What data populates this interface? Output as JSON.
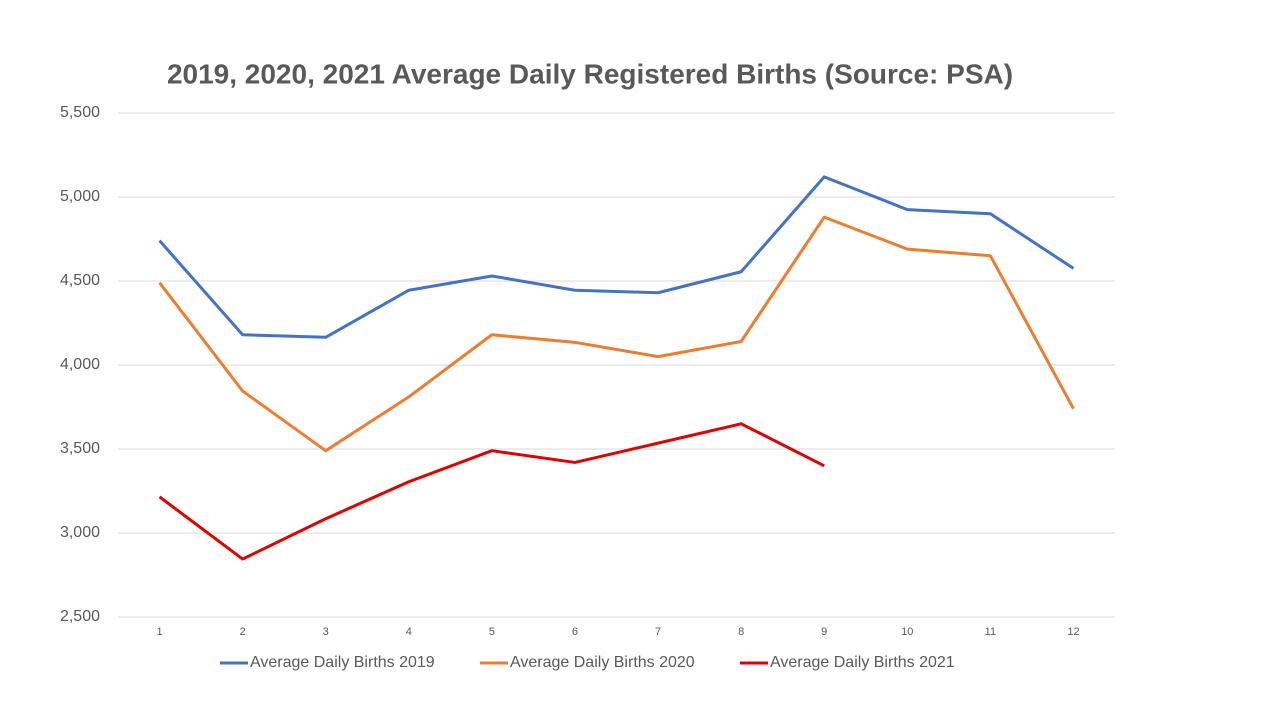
{
  "chart_data": {
    "type": "line",
    "title": "2019, 2020, 2021 Average Daily Registered Births (Source: PSA)",
    "categories": [
      "1",
      "2",
      "3",
      "4",
      "5",
      "6",
      "7",
      "8",
      "9",
      "10",
      "11",
      "12"
    ],
    "series": [
      {
        "name": "Average Daily Births 2019",
        "color": "#4472c4",
        "values": [
          4740,
          4180,
          4165,
          4445,
          4530,
          4445,
          4430,
          4555,
          5120,
          4925,
          4900,
          4575
        ]
      },
      {
        "name": "Average Daily Births 2020",
        "color": "#ed7d31",
        "values": [
          4490,
          3845,
          3490,
          3810,
          4180,
          4135,
          4050,
          4140,
          4880,
          4690,
          4650,
          3740
        ]
      },
      {
        "name": "Average Daily Births 2021",
        "color": "#e00000",
        "values": [
          3215,
          2845,
          3085,
          3305,
          3490,
          3420,
          3535,
          3650,
          3400,
          null,
          null,
          null
        ]
      }
    ],
    "ylim": [
      2500,
      5500
    ],
    "yticks": [
      {
        "value": 2500,
        "label": "2,500"
      },
      {
        "value": 3000,
        "label": "3,000"
      },
      {
        "value": 3500,
        "label": "3,500"
      },
      {
        "value": 4000,
        "label": "4,000"
      },
      {
        "value": 4500,
        "label": "4,500"
      },
      {
        "value": 5000,
        "label": "5,000"
      },
      {
        "value": 5500,
        "label": "5,500"
      }
    ],
    "grid": true,
    "legend": "bottom"
  }
}
